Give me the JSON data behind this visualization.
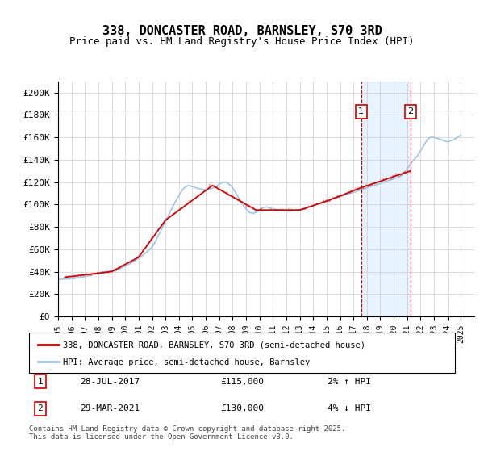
{
  "title": "338, DONCASTER ROAD, BARNSLEY, S70 3RD",
  "subtitle": "Price paid vs. HM Land Registry's House Price Index (HPI)",
  "ylabel_ticks": [
    "£0",
    "£20K",
    "£40K",
    "£60K",
    "£80K",
    "£100K",
    "£120K",
    "£140K",
    "£160K",
    "£180K",
    "£200K"
  ],
  "ytick_values": [
    0,
    20000,
    40000,
    60000,
    80000,
    100000,
    120000,
    140000,
    160000,
    180000,
    200000
  ],
  "ylim": [
    0,
    210000
  ],
  "xlim_start": 1995.0,
  "xlim_end": 2026.0,
  "annotation1": {
    "label": "1",
    "date": "28-JUL-2017",
    "price": "£115,000",
    "pct": "2% ↑ HPI",
    "x": 2017.57
  },
  "annotation2": {
    "label": "2",
    "date": "29-MAR-2021",
    "price": "£130,000",
    "pct": "4% ↓ HPI",
    "x": 2021.25
  },
  "shade_region": [
    2017.57,
    2021.25
  ],
  "legend1": "338, DONCASTER ROAD, BARNSLEY, S70 3RD (semi-detached house)",
  "legend2": "HPI: Average price, semi-detached house, Barnsley",
  "footer": "Contains HM Land Registry data © Crown copyright and database right 2025.\nThis data is licensed under the Open Government Licence v3.0.",
  "line_color_red": "#cc0000",
  "line_color_blue": "#a0c4e8",
  "annotation_box_color": "#cc0000",
  "shade_color": "#ddeeff",
  "hpi_data_x": [
    1995.0,
    1995.25,
    1995.5,
    1995.75,
    1996.0,
    1996.25,
    1996.5,
    1996.75,
    1997.0,
    1997.25,
    1997.5,
    1997.75,
    1998.0,
    1998.25,
    1998.5,
    1998.75,
    1999.0,
    1999.25,
    1999.5,
    1999.75,
    2000.0,
    2000.25,
    2000.5,
    2000.75,
    2001.0,
    2001.25,
    2001.5,
    2001.75,
    2002.0,
    2002.25,
    2002.5,
    2002.75,
    2003.0,
    2003.25,
    2003.5,
    2003.75,
    2004.0,
    2004.25,
    2004.5,
    2004.75,
    2005.0,
    2005.25,
    2005.5,
    2005.75,
    2006.0,
    2006.25,
    2006.5,
    2006.75,
    2007.0,
    2007.25,
    2007.5,
    2007.75,
    2008.0,
    2008.25,
    2008.5,
    2008.75,
    2009.0,
    2009.25,
    2009.5,
    2009.75,
    2010.0,
    2010.25,
    2010.5,
    2010.75,
    2011.0,
    2011.25,
    2011.5,
    2011.75,
    2012.0,
    2012.25,
    2012.5,
    2012.75,
    2013.0,
    2013.25,
    2013.5,
    2013.75,
    2014.0,
    2014.25,
    2014.5,
    2014.75,
    2015.0,
    2015.25,
    2015.5,
    2015.75,
    2016.0,
    2016.25,
    2016.5,
    2016.75,
    2017.0,
    2017.25,
    2017.5,
    2017.75,
    2018.0,
    2018.25,
    2018.5,
    2018.75,
    2019.0,
    2019.25,
    2019.5,
    2019.75,
    2020.0,
    2020.25,
    2020.5,
    2020.75,
    2021.0,
    2021.25,
    2021.5,
    2021.75,
    2022.0,
    2022.25,
    2022.5,
    2022.75,
    2023.0,
    2023.25,
    2023.5,
    2023.75,
    2024.0,
    2024.25,
    2024.5,
    2024.75,
    2025.0
  ],
  "hpi_data_y": [
    33000,
    33200,
    33400,
    33600,
    33800,
    34000,
    34500,
    35000,
    35500,
    36200,
    37000,
    38000,
    38800,
    39500,
    40000,
    40200,
    40500,
    41000,
    42000,
    43500,
    45000,
    46500,
    48000,
    50000,
    52000,
    54000,
    56500,
    59000,
    62000,
    67000,
    73000,
    79000,
    85000,
    91000,
    97000,
    103000,
    108000,
    113000,
    116000,
    117000,
    116000,
    115000,
    114000,
    113500,
    113000,
    113500,
    114500,
    116000,
    118000,
    120000,
    120000,
    118000,
    115000,
    110000,
    105000,
    100000,
    96000,
    93000,
    92000,
    93000,
    95000,
    97000,
    98000,
    97000,
    96000,
    95500,
    95000,
    94500,
    94000,
    94000,
    94500,
    95000,
    95500,
    96000,
    97000,
    98000,
    99000,
    100000,
    101000,
    102000,
    103000,
    104000,
    105000,
    106000,
    107000,
    108000,
    109000,
    110000,
    111000,
    112000,
    113000,
    114000,
    115000,
    116000,
    117000,
    118000,
    119000,
    120000,
    121000,
    122000,
    123000,
    124000,
    125000,
    128000,
    132000,
    136000,
    140000,
    143000,
    148000,
    153000,
    158000,
    160000,
    160000,
    159000,
    158000,
    157000,
    156000,
    157000,
    158000,
    160000,
    162000
  ],
  "price_paid_x": [
    1995.5,
    1997.25,
    1999.0,
    2001.0,
    2003.0,
    2006.5,
    2009.75,
    2013.0,
    2015.0,
    2017.57,
    2021.25
  ],
  "price_paid_y": [
    35000,
    37500,
    40000,
    53000,
    86000,
    117000,
    95000,
    95000,
    103000,
    115000,
    130000
  ]
}
